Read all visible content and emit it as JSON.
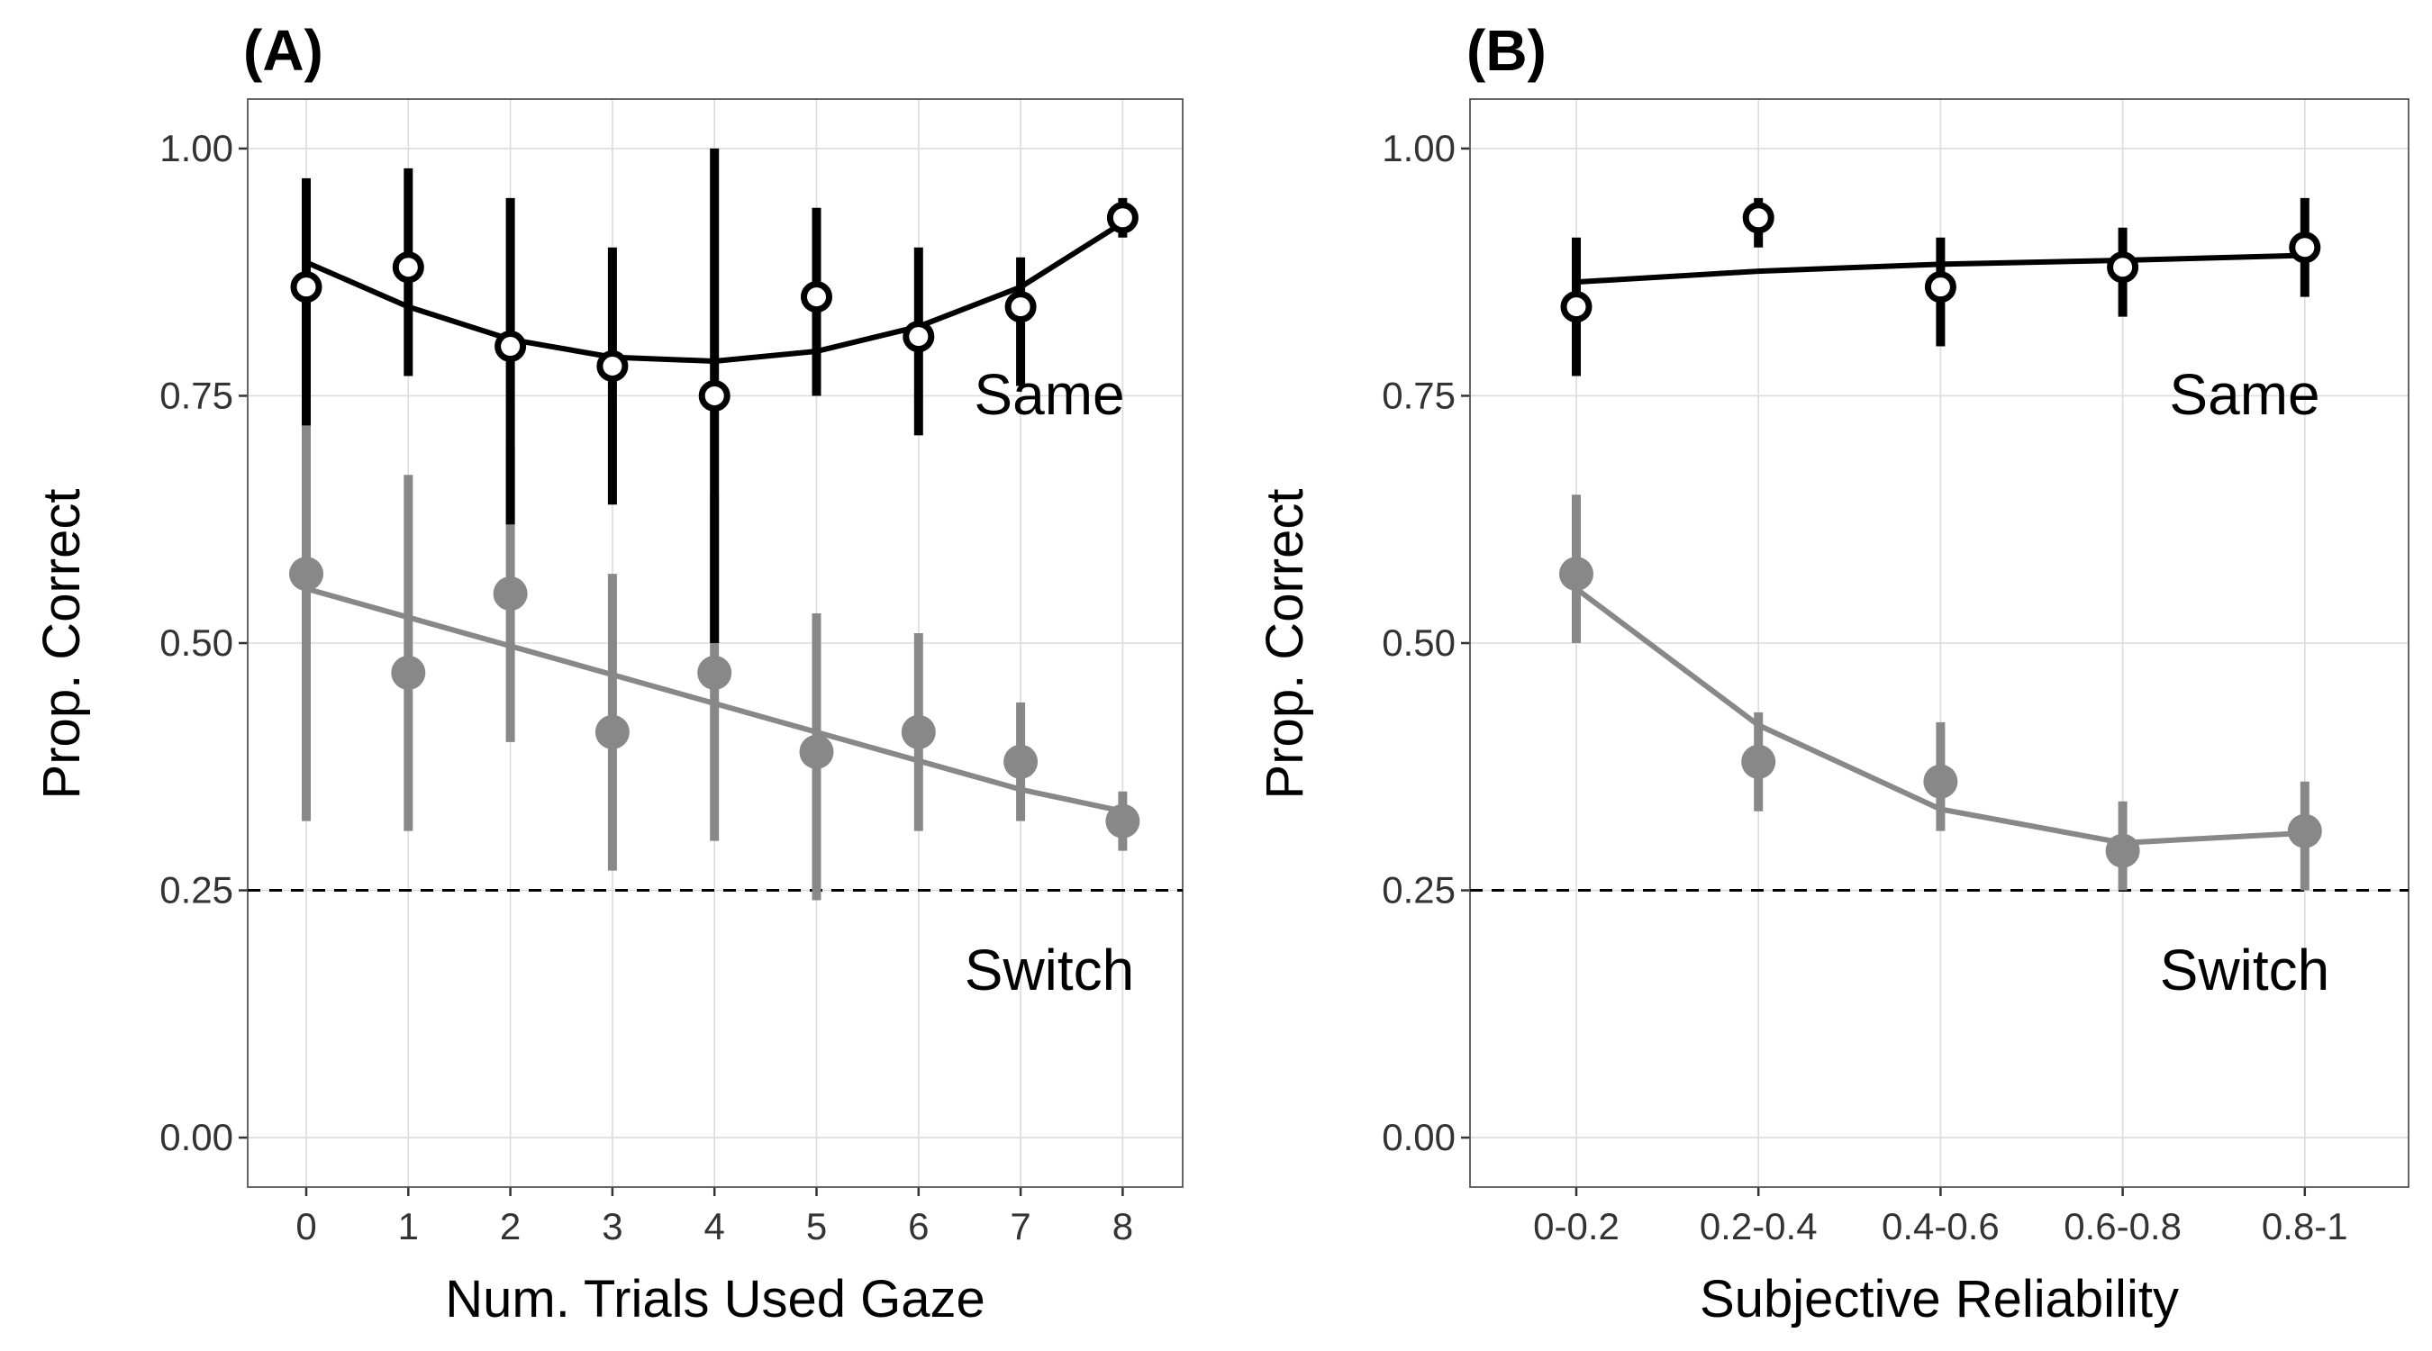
{
  "chart_data": [
    {
      "type": "scatter",
      "panel_label": "(A)",
      "xlabel": "Num. Trials Used Gaze",
      "ylabel": "Prop. Correct",
      "categories": [
        "0",
        "1",
        "2",
        "3",
        "4",
        "5",
        "6",
        "7",
        "8"
      ],
      "yticks": [
        "0.00",
        "0.25",
        "0.50",
        "0.75",
        "1.00"
      ],
      "ylim": [
        -0.05,
        1.05
      ],
      "grid": true,
      "chance_line": 0.25,
      "annotations": [
        "Same",
        "Switch"
      ],
      "series": [
        {
          "key": "same",
          "color": "#000000",
          "marker": "open-circle",
          "values": [
            0.86,
            0.88,
            0.8,
            0.78,
            0.75,
            0.85,
            0.81,
            0.84,
            0.93
          ],
          "lower": [
            0.72,
            0.77,
            0.62,
            0.64,
            0.5,
            0.75,
            0.71,
            0.76,
            0.91
          ],
          "upper": [
            0.97,
            0.98,
            0.95,
            0.9,
            1.0,
            0.94,
            0.9,
            0.89,
            0.95
          ],
          "fit": [
            0.885,
            0.84,
            0.807,
            0.789,
            0.785,
            0.795,
            0.82,
            0.86,
            0.925
          ]
        },
        {
          "key": "switch",
          "color": "#888888",
          "marker": "filled-circle",
          "values": [
            0.57,
            0.47,
            0.55,
            0.41,
            0.47,
            0.39,
            0.41,
            0.38,
            0.32
          ],
          "lower": [
            0.32,
            0.31,
            0.4,
            0.27,
            0.3,
            0.24,
            0.31,
            0.32,
            0.29
          ],
          "upper": [
            0.82,
            0.67,
            0.7,
            0.57,
            0.65,
            0.53,
            0.51,
            0.44,
            0.35
          ],
          "fit": [
            0.555,
            0.526,
            0.497,
            0.468,
            0.439,
            0.41,
            0.381,
            0.352,
            0.33
          ]
        }
      ]
    },
    {
      "type": "scatter",
      "panel_label": "(B)",
      "xlabel": "Subjective Reliability",
      "ylabel": "Prop. Correct",
      "categories": [
        "0-0.2",
        "0.2-0.4",
        "0.4-0.6",
        "0.6-0.8",
        "0.8-1"
      ],
      "yticks": [
        "0.00",
        "0.25",
        "0.50",
        "0.75",
        "1.00"
      ],
      "ylim": [
        -0.05,
        1.05
      ],
      "grid": true,
      "chance_line": 0.25,
      "annotations": [
        "Same",
        "Switch"
      ],
      "series": [
        {
          "key": "same",
          "color": "#000000",
          "marker": "open-circle",
          "values": [
            0.84,
            0.93,
            0.86,
            0.88,
            0.9
          ],
          "lower": [
            0.77,
            0.9,
            0.8,
            0.83,
            0.85
          ],
          "upper": [
            0.91,
            0.95,
            0.91,
            0.92,
            0.95
          ],
          "fit": [
            0.865,
            0.876,
            0.883,
            0.887,
            0.892
          ]
        },
        {
          "key": "switch",
          "color": "#888888",
          "marker": "filled-circle",
          "values": [
            0.57,
            0.38,
            0.36,
            0.29,
            0.31
          ],
          "lower": [
            0.5,
            0.33,
            0.31,
            0.25,
            0.25
          ],
          "upper": [
            0.65,
            0.43,
            0.42,
            0.34,
            0.36
          ],
          "fit": [
            0.555,
            0.417,
            0.332,
            0.298,
            0.308
          ]
        }
      ]
    }
  ]
}
